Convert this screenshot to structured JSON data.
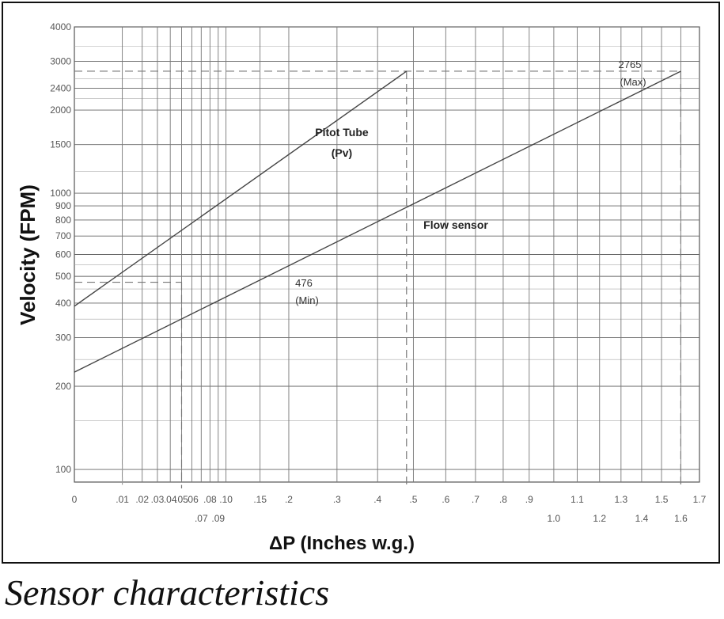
{
  "chart_data": {
    "type": "line",
    "title": "",
    "xlabel": "ΔP  (Inches w.g.)",
    "ylabel": "Velocity (FPM)",
    "yscale": "log",
    "ylim": [
      90,
      4000
    ],
    "grid": true,
    "x_ticks_row1": [
      "0",
      ".01",
      ".02",
      ".03",
      ".04",
      ".05",
      ".06",
      ".08",
      ".10",
      ".15",
      ".2",
      ".3",
      ".4",
      ".5",
      ".6",
      ".7",
      ".8",
      ".9",
      "1.1",
      "1.3",
      "1.5",
      "1.7"
    ],
    "x_ticks_row2": [
      ".07",
      ".09",
      "1.0",
      "1.2",
      "1.4",
      "1.6"
    ],
    "y_ticks": [
      100,
      200,
      300,
      400,
      500,
      600,
      700,
      800,
      900,
      1000,
      1500,
      2000,
      2400,
      3000,
      4000
    ],
    "series": [
      {
        "name": "Pitot Tube (Pv)",
        "label_lines": [
          "Pitot Tube",
          "(Pv)"
        ],
        "points": [
          {
            "x": 0,
            "y": 390
          },
          {
            "x": 0.48,
            "y": 2765
          }
        ]
      },
      {
        "name": "Flow sensor",
        "label_lines": [
          "Flow sensor"
        ],
        "points": [
          {
            "x": 0,
            "y": 225
          },
          {
            "x": 1.6,
            "y": 2765
          }
        ]
      }
    ],
    "annotations": [
      {
        "text_lines": [
          "2765",
          "(Max)"
        ],
        "x": 1.6,
        "y": 2765
      },
      {
        "text_lines": [
          "476",
          "(Min)"
        ],
        "x": 0.05,
        "y": 476
      }
    ]
  },
  "caption": "Sensor characteristics"
}
